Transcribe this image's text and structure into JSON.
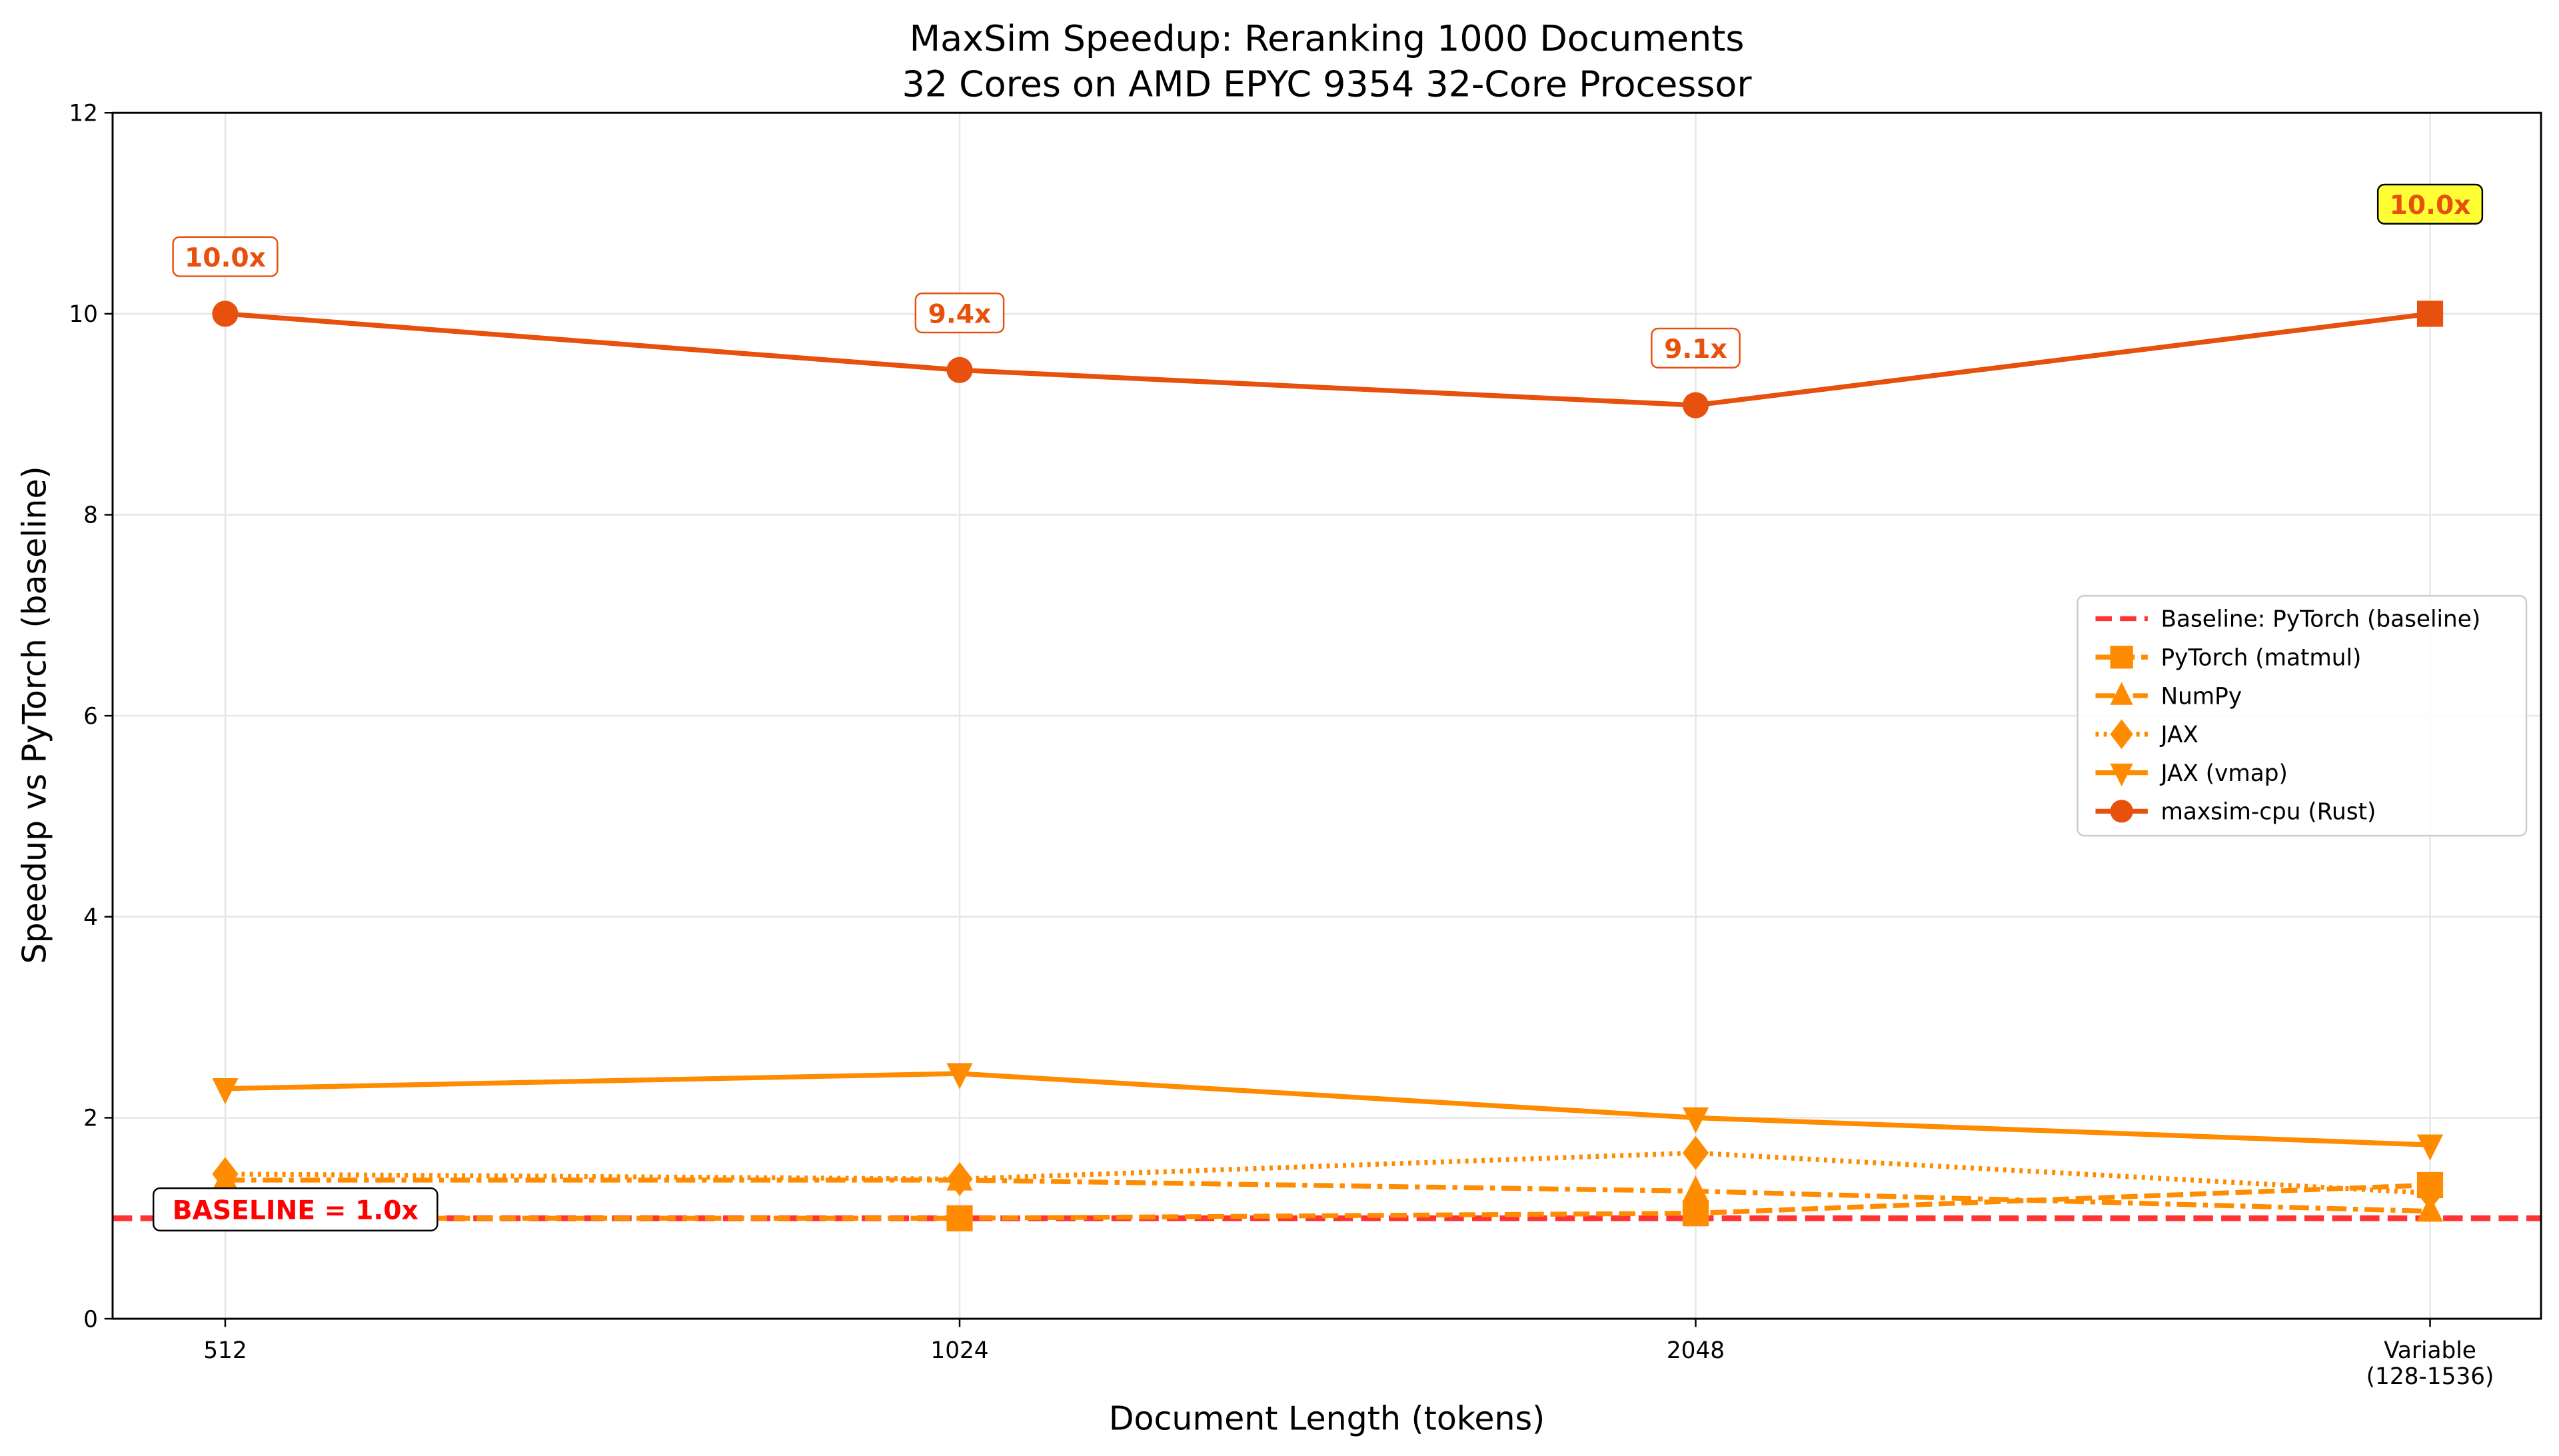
{
  "chart_data": {
    "type": "line",
    "title": "MaxSim Speedup: Reranking 1000 Documents",
    "subtitle": "32 Cores on AMD EPYC 9354 32-Core Processor",
    "xlabel": "Document Length (tokens)",
    "ylabel": "Speedup vs PyTorch (baseline)",
    "categories": [
      "512",
      "1024",
      "2048",
      "Variable\n(128-1536)"
    ],
    "ylim": [
      0,
      12
    ],
    "yticks": [
      0,
      2,
      4,
      6,
      8,
      10,
      12
    ],
    "grid": true,
    "legend_position": "center-right",
    "baseline": {
      "name": "Baseline: PyTorch (baseline)",
      "value": 1.0,
      "color": "#ff3333",
      "style": "dashed",
      "label": "BASELINE = 1.0x"
    },
    "series": [
      {
        "name": "PyTorch (matmul)",
        "values": [
          1.0,
          1.0,
          1.05,
          1.33
        ],
        "color": "#ff8c00",
        "marker": "square",
        "style": "dashed"
      },
      {
        "name": "NumPy",
        "values": [
          1.38,
          1.38,
          1.27,
          1.07
        ],
        "color": "#ff8c00",
        "marker": "triangle-up",
        "style": "dashdot"
      },
      {
        "name": "JAX",
        "values": [
          1.44,
          1.39,
          1.65,
          1.25
        ],
        "color": "#ff8c00",
        "marker": "diamond",
        "style": "dotted"
      },
      {
        "name": "JAX (vmap)",
        "values": [
          2.29,
          2.44,
          2.0,
          1.73
        ],
        "color": "#ff8c00",
        "marker": "triangle-down",
        "style": "solid"
      },
      {
        "name": "maxsim-cpu (Rust)",
        "values": [
          10.0,
          9.44,
          9.09,
          10.0
        ],
        "color": "#e8500e",
        "marker": "circle",
        "style": "solid"
      }
    ],
    "annotations": [
      "10.0x",
      "9.4x",
      "9.1x",
      "10.0x"
    ],
    "highlight_color": "#ffff33"
  }
}
